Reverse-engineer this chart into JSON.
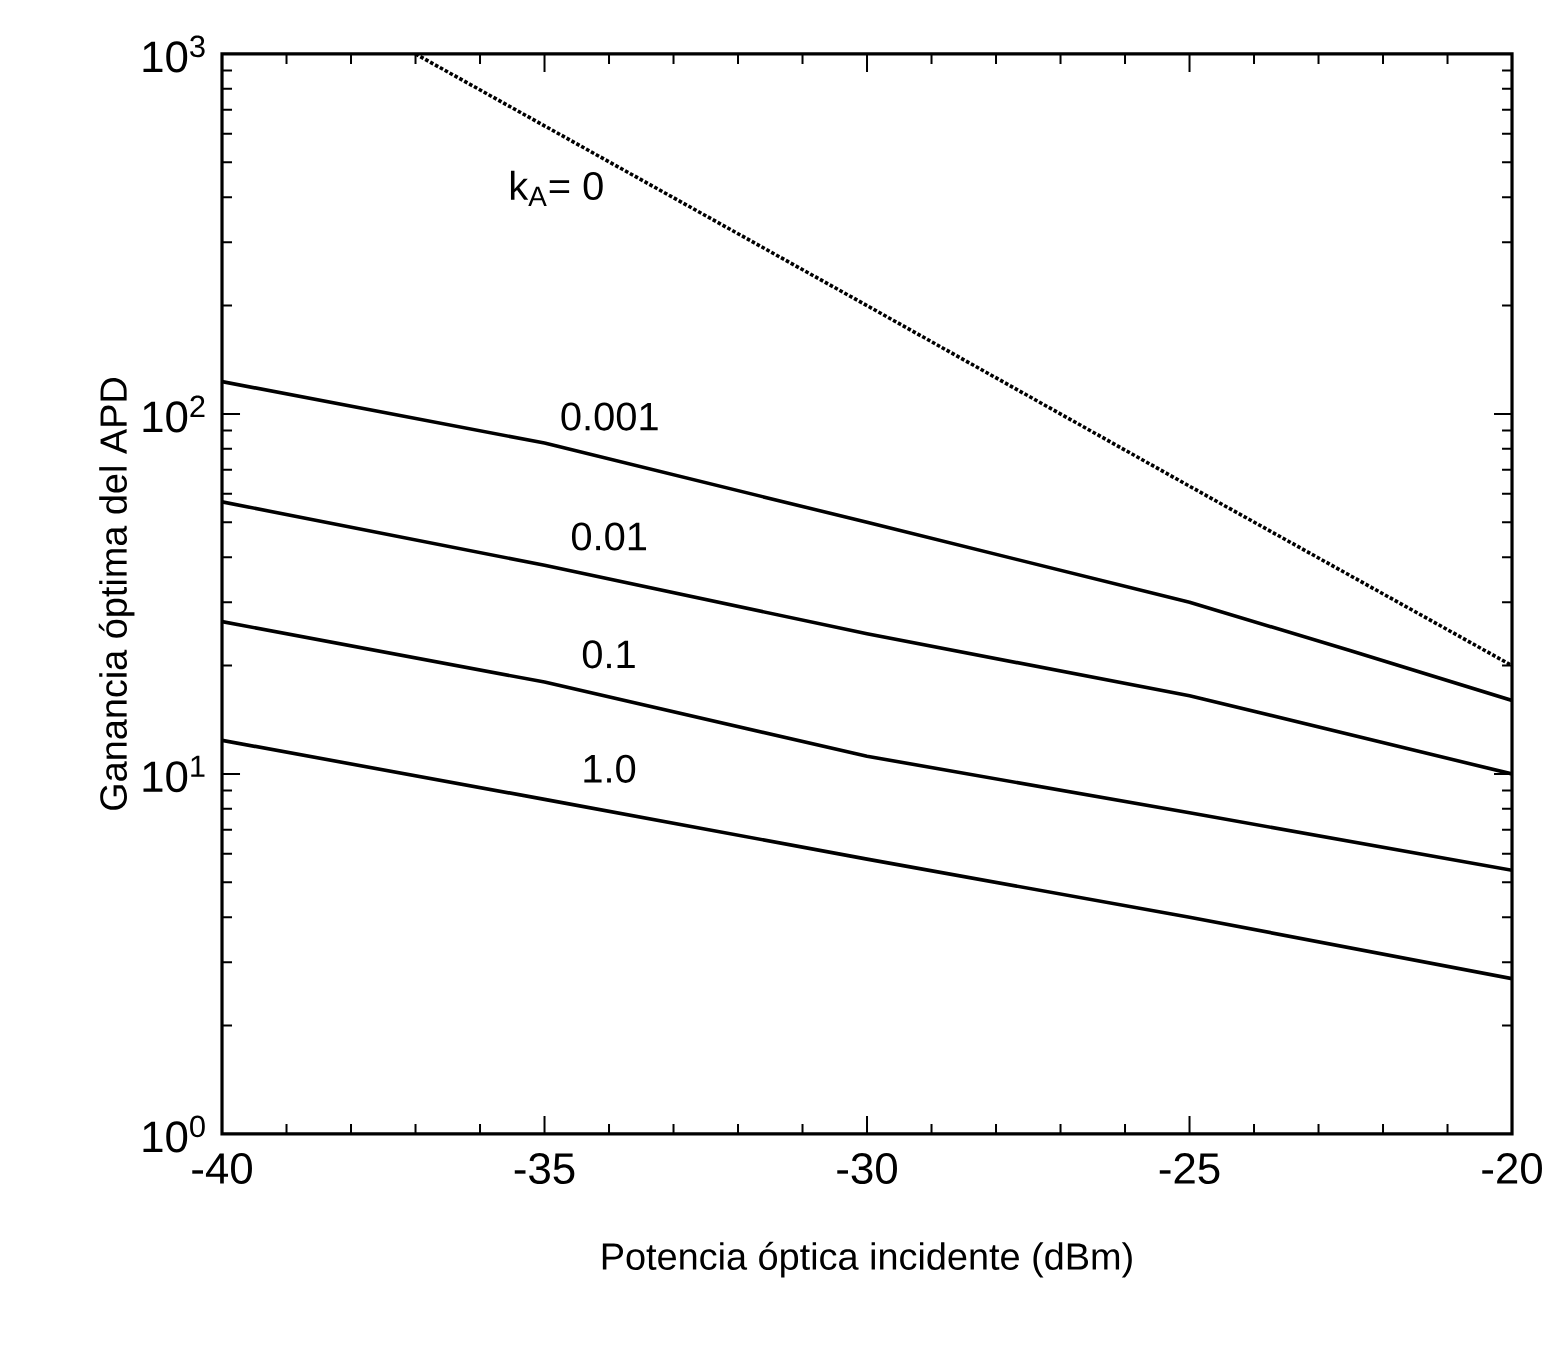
{
  "chart_data": {
    "type": "line",
    "xlabel": "Potencia óptica incidente (dBm)",
    "ylabel": "Ganancia óptima del APD",
    "log": "y",
    "grid": false,
    "legend": false,
    "xlim": [
      -40,
      -20
    ],
    "ylim": [
      1,
      1000
    ],
    "xticks": [
      -40,
      -35,
      -30,
      -25,
      -20
    ],
    "yticks": [
      {
        "value": 1,
        "label": "10$^{0}$"
      },
      {
        "value": 10,
        "label": "10$^{1}$"
      },
      {
        "value": 100,
        "label": "10$^{2}$"
      },
      {
        "value": 1000,
        "label": "10$^{3}$"
      }
    ],
    "series": [
      {
        "name": "k$_{A}$= 0",
        "color": "#000000",
        "line_style": "dotted",
        "x": [
          -37,
          -30,
          -25,
          -20
        ],
        "values": [
          1000,
          200,
          63,
          20
        ]
      },
      {
        "name": "0.001",
        "color": "#000000",
        "line_style": "solid",
        "x": [
          -40,
          -35,
          -30,
          -25,
          -22.5,
          -20
        ],
        "values": [
          123,
          83,
          50,
          30,
          22,
          16
        ]
      },
      {
        "name": "0.01",
        "color": "#000000",
        "line_style": "solid",
        "x": [
          -40,
          -35,
          -30,
          -25,
          -20
        ],
        "values": [
          57,
          38,
          24.5,
          16.5,
          10
        ]
      },
      {
        "name": "0.1",
        "color": "#000000",
        "line_style": "solid",
        "x": [
          -40,
          -35,
          -30,
          -25,
          -20
        ],
        "values": [
          26.5,
          18,
          11.2,
          7.8,
          5.4
        ]
      },
      {
        "name": "1.0",
        "color": "#000000",
        "line_style": "solid",
        "x": [
          -40,
          -35,
          -30,
          -25,
          -20
        ],
        "values": [
          12.4,
          8.5,
          5.8,
          4,
          2.7
        ]
      }
    ]
  }
}
